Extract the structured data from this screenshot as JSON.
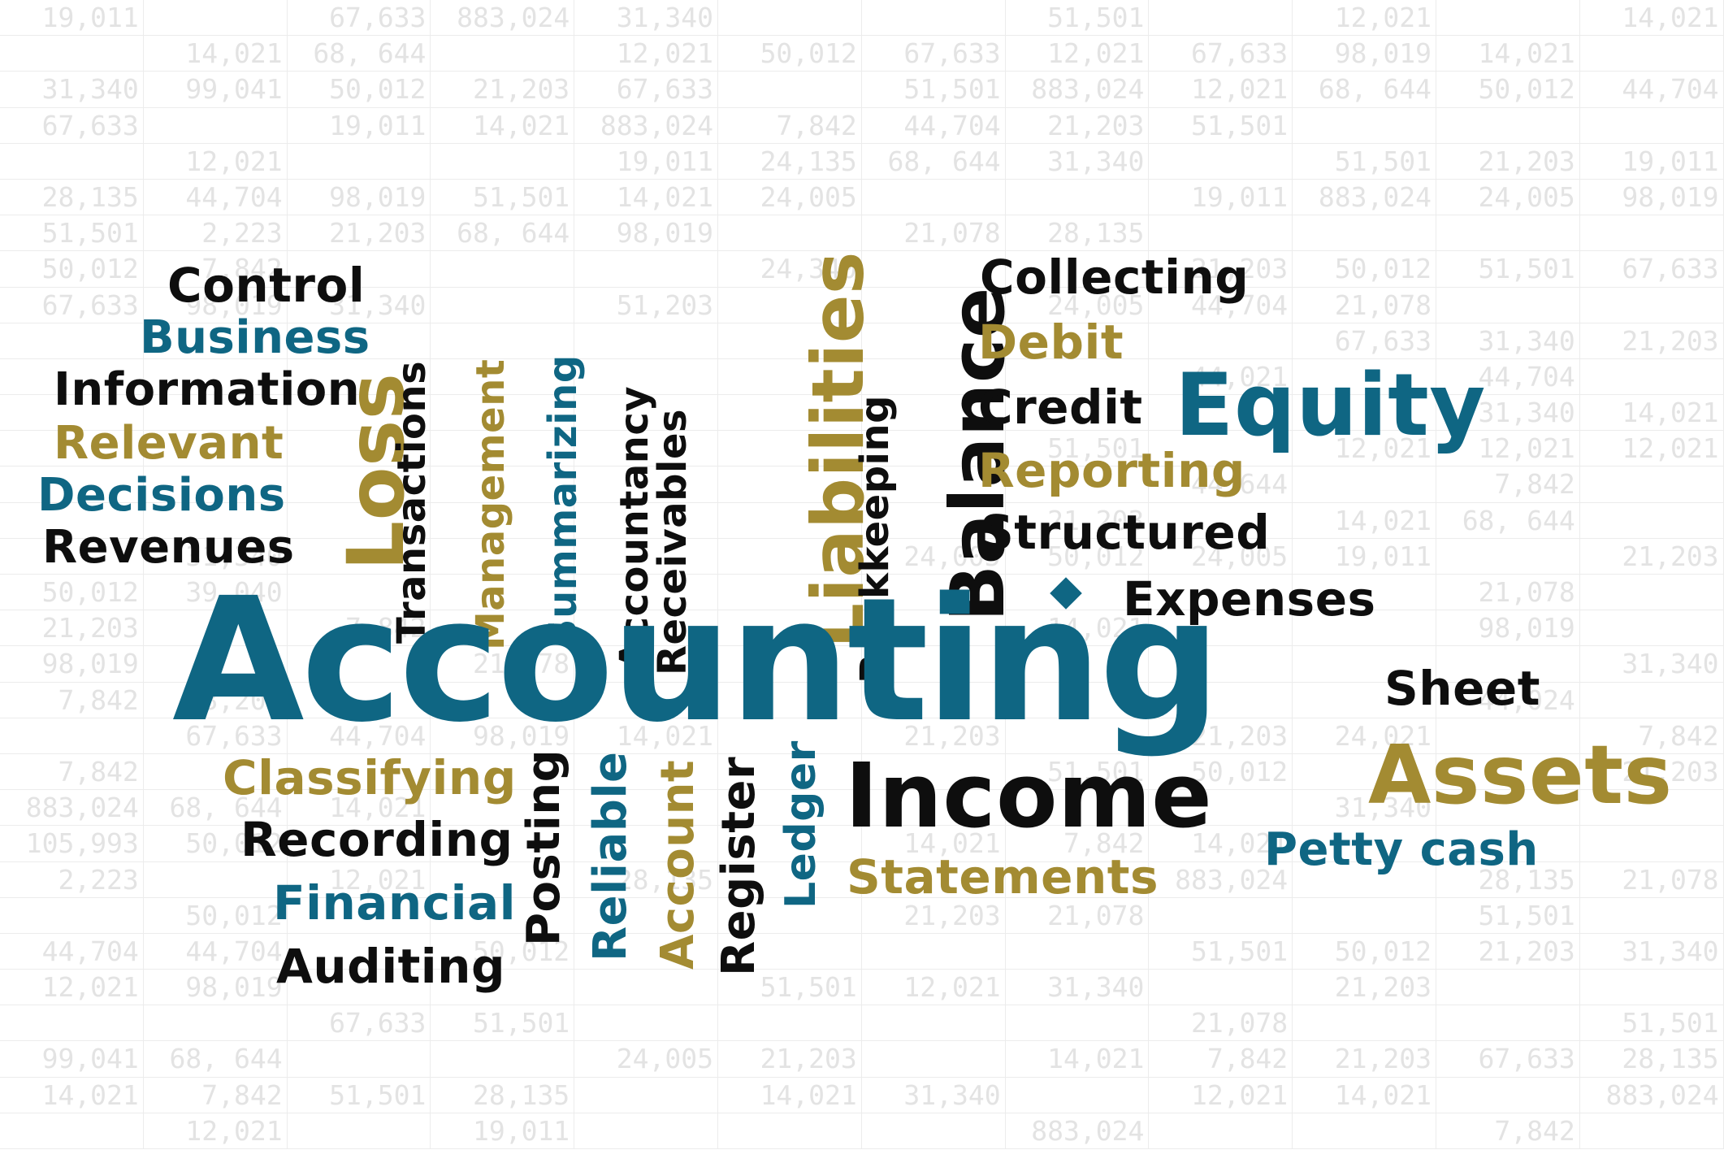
{
  "background_rows": [
    [
      "19,011",
      "",
      "67,633",
      "883,024",
      "31,340",
      "",
      "",
      "51,501",
      "",
      "12,021",
      "",
      "14,021"
    ],
    [
      "",
      "14,021",
      "68, 644",
      "",
      "12,021",
      "50,012",
      "67,633",
      "12,021",
      "67,633",
      "98,019",
      "14,021",
      ""
    ],
    [
      "31,340",
      "99,041",
      "50,012",
      "21,203",
      "67,633",
      "",
      "51,501",
      "883,024",
      "12,021",
      "68, 644",
      "50,012",
      "44,704"
    ],
    [
      "67,633",
      "",
      "19,011",
      "14,021",
      "883,024",
      "7,842",
      "44,704",
      "21,203",
      "51,501",
      "",
      "",
      ""
    ],
    [
      "",
      "12,021",
      "",
      "",
      "19,011",
      "24,135",
      "68, 644",
      "31,340",
      "",
      "51,501",
      "21,203",
      "19,011"
    ],
    [
      "28,135",
      "44,704",
      "98,019",
      "51,501",
      "14,021",
      "24,005",
      "",
      "",
      "19,011",
      "883,024",
      "24,005",
      "98,019"
    ],
    [
      "51,501",
      "2,223",
      "21,203",
      "68, 644",
      "98,019",
      "",
      "21,078",
      "28,135",
      "",
      "",
      "",
      ""
    ],
    [
      "50,012",
      "7,842",
      "",
      "",
      "",
      "24,340",
      "",
      "",
      "21,203",
      "50,012",
      "51,501",
      "67,633"
    ],
    [
      "67,633",
      "98,019",
      "31,340",
      "",
      "51,203",
      "",
      "",
      "24,005",
      "44,704",
      "21,078",
      "",
      ""
    ],
    [
      "",
      "",
      "",
      "",
      "",
      "",
      "",
      "",
      "",
      "67,633",
      "31,340",
      "21,203"
    ],
    [
      "",
      "",
      "",
      "",
      "",
      "",
      "",
      "",
      "44,021",
      "",
      "44,704",
      ""
    ],
    [
      "",
      "",
      "",
      "",
      "",
      "",
      "",
      "",
      "",
      "",
      "31,340",
      "14,021"
    ],
    [
      "",
      "",
      "",
      "",
      "",
      "",
      "",
      "51,501",
      "",
      "12,021",
      "12,021",
      "12,021"
    ],
    [
      "",
      "",
      "",
      "",
      "",
      "",
      "",
      "",
      "44,644",
      "",
      "7,842",
      ""
    ],
    [
      "",
      "",
      "",
      "",
      "",
      "",
      "",
      "21,203",
      "",
      "14,021",
      "68, 644",
      ""
    ],
    [
      "",
      "31,340",
      "",
      "",
      "",
      "",
      "24,005",
      "50,012",
      "24,005",
      "19,011",
      "",
      "21,203"
    ],
    [
      "50,012",
      "39,040",
      "",
      "",
      "",
      "",
      "",
      "",
      "",
      "",
      "21,078",
      ""
    ],
    [
      "21,203",
      "",
      "7,842",
      "",
      "",
      "",
      "",
      "14,021",
      "",
      "",
      "98,019",
      ""
    ],
    [
      "98,019",
      "",
      "",
      "21,078",
      "",
      "",
      "",
      "",
      "",
      "",
      "",
      "31,340"
    ],
    [
      "7,842",
      "98,202",
      "",
      "",
      "",
      "",
      "",
      "",
      "",
      "",
      "44,024",
      ""
    ],
    [
      "",
      "67,633",
      "44,704",
      "98,019",
      "14,021",
      "",
      "21,203",
      "",
      "21,203",
      "24,021",
      "",
      "7,842"
    ],
    [
      "7,842",
      "",
      "",
      "",
      "",
      "",
      "",
      "51,501",
      "50,012",
      "",
      "",
      "21,203"
    ],
    [
      "883,024",
      "68, 644",
      "14,021",
      "",
      "",
      "",
      "",
      "",
      "",
      "31,340",
      "",
      ""
    ],
    [
      "105,993",
      "50,012",
      "",
      "",
      "",
      "",
      "14,021",
      "7,842",
      "14,021",
      "",
      "",
      ""
    ],
    [
      "2,223",
      "",
      "12,021",
      "",
      "28,135",
      "",
      "",
      "",
      "883,024",
      "",
      "28,135",
      "21,078"
    ],
    [
      "",
      "50,012",
      "",
      "",
      "",
      "",
      "21,203",
      "21,078",
      "",
      "",
      "51,501",
      ""
    ],
    [
      "44,704",
      "44,704",
      "",
      "50,012",
      "",
      "",
      "",
      "",
      "51,501",
      "50,012",
      "21,203",
      "31,340"
    ],
    [
      "12,021",
      "98,019",
      "",
      "",
      "",
      "51,501",
      "12,021",
      "31,340",
      "",
      "21,203",
      "",
      ""
    ],
    [
      "",
      "",
      "67,633",
      "51,501",
      "",
      "",
      "",
      "",
      "21,078",
      "",
      "",
      "51,501"
    ],
    [
      "99,041",
      "68, 644",
      "",
      "",
      "24,005",
      "21,203",
      "",
      "14,021",
      "7,842",
      "21,203",
      "67,633",
      "28,135"
    ],
    [
      "14,021",
      "7,842",
      "51,501",
      "28,135",
      "",
      "14,021",
      "31,340",
      "",
      "12,021",
      "14,021",
      "",
      "883,024"
    ],
    [
      "",
      "12,021",
      "",
      "19,011",
      "",
      "",
      "",
      "883,024",
      "",
      "",
      "7,842",
      ""
    ]
  ],
  "colors": {
    "black": "#0e0e0e",
    "teal": "#0f6683",
    "gold": "#a38b32",
    "grid_text": "#e3e3e3",
    "grid_line": "#ececec"
  },
  "words": {
    "control": "Control",
    "business": "Business",
    "information": "Information",
    "relevant": "Relevant",
    "decisions": "Decisions",
    "revenues": "Revenues",
    "loss": "Loss",
    "transactions": "Transactions",
    "management": "Management",
    "summarizing": "Summarizing",
    "accountancy": "Accountancy",
    "receivables": "Receivables",
    "liabilities": "Liabilities",
    "bookkeeping": "Bookkeeping",
    "balance": "Balance",
    "collecting": "Collecting",
    "debit": "Debit",
    "credit": "Credit",
    "equity": "Equity",
    "reporting": "Reporting",
    "structured": "Structured",
    "expenses": "Expenses",
    "accounting": "Accounting",
    "sheet": "Sheet",
    "assets": "Assets",
    "petty_cash": "Petty cash",
    "classifying": "Classifying",
    "recording": "Recording",
    "financial": "Financial",
    "auditing": "Auditing",
    "posting": "Posting",
    "reliable": "Reliable",
    "account": "Account",
    "register": "Register",
    "ledger": "Ledger",
    "income": "Income",
    "statements": "Statements"
  }
}
